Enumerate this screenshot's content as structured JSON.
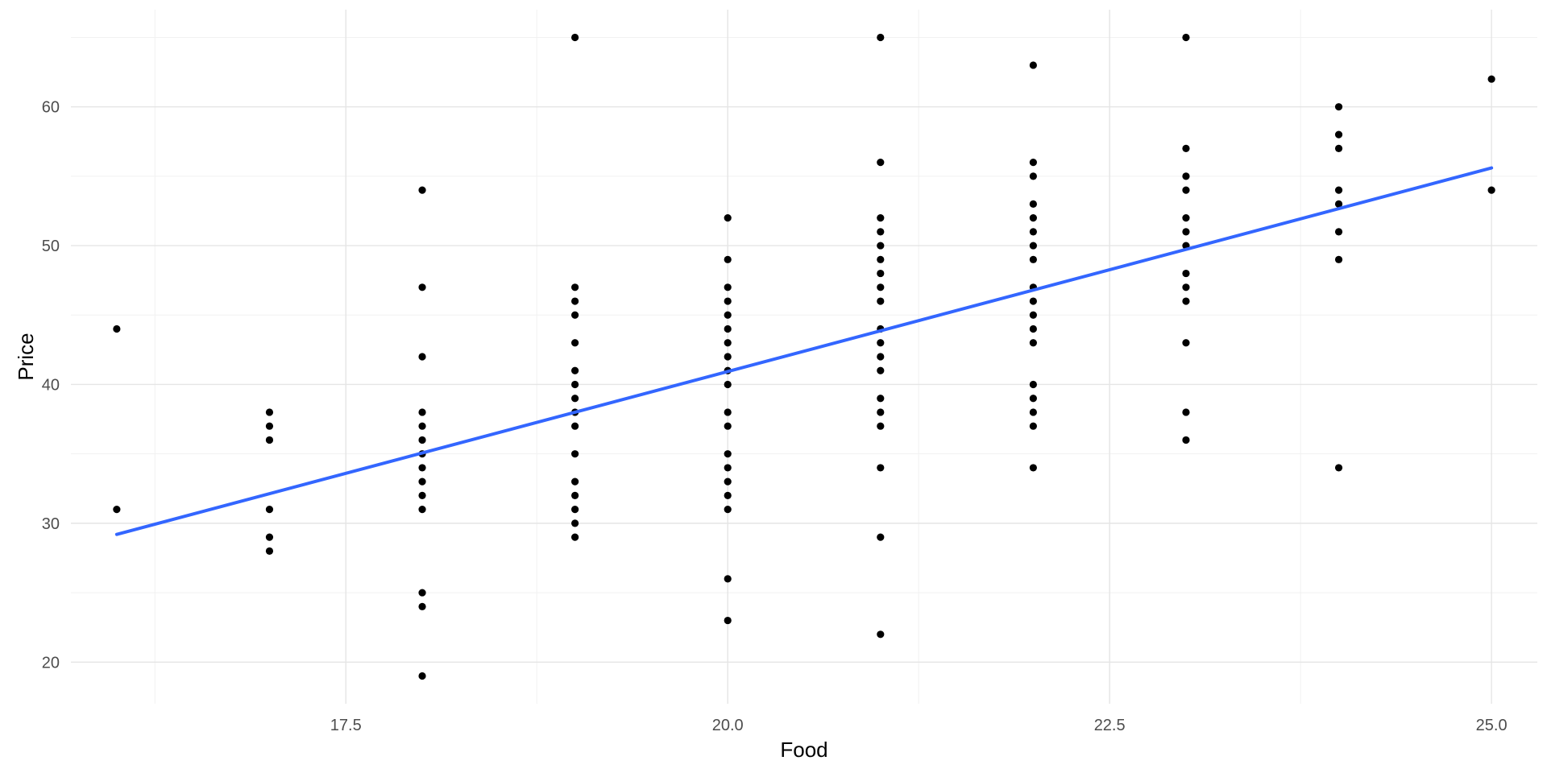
{
  "chart_data": {
    "type": "scatter",
    "title": "",
    "xlabel": "Food",
    "ylabel": "Price",
    "xlim": [
      15.7,
      25.3
    ],
    "ylim": [
      17,
      67
    ],
    "x_ticks": [
      17.5,
      20.0,
      22.5,
      25.0
    ],
    "x_tick_labels": [
      "17.5",
      "20.0",
      "22.5",
      "25.0"
    ],
    "y_ticks": [
      20,
      30,
      40,
      50,
      60
    ],
    "y_tick_labels": [
      "20",
      "30",
      "40",
      "50",
      "60"
    ],
    "grid": true,
    "legend": "none",
    "colors": {
      "points": "#000000",
      "fit_line": "#3366FF",
      "grid_major": "#e5e5e5",
      "grid_minor": "#f1f1f1"
    },
    "points": [
      {
        "x": 16,
        "y": 44
      },
      {
        "x": 16,
        "y": 31
      },
      {
        "x": 17,
        "y": 38
      },
      {
        "x": 17,
        "y": 37
      },
      {
        "x": 17,
        "y": 36
      },
      {
        "x": 17,
        "y": 31
      },
      {
        "x": 17,
        "y": 29
      },
      {
        "x": 17,
        "y": 28
      },
      {
        "x": 18,
        "y": 54
      },
      {
        "x": 18,
        "y": 47
      },
      {
        "x": 18,
        "y": 42
      },
      {
        "x": 18,
        "y": 38
      },
      {
        "x": 18,
        "y": 37
      },
      {
        "x": 18,
        "y": 36
      },
      {
        "x": 18,
        "y": 35
      },
      {
        "x": 18,
        "y": 34
      },
      {
        "x": 18,
        "y": 33
      },
      {
        "x": 18,
        "y": 32
      },
      {
        "x": 18,
        "y": 31
      },
      {
        "x": 18,
        "y": 25
      },
      {
        "x": 18,
        "y": 24
      },
      {
        "x": 18,
        "y": 19
      },
      {
        "x": 19,
        "y": 65
      },
      {
        "x": 19,
        "y": 47
      },
      {
        "x": 19,
        "y": 46
      },
      {
        "x": 19,
        "y": 45
      },
      {
        "x": 19,
        "y": 43
      },
      {
        "x": 19,
        "y": 41
      },
      {
        "x": 19,
        "y": 40
      },
      {
        "x": 19,
        "y": 39
      },
      {
        "x": 19,
        "y": 38
      },
      {
        "x": 19,
        "y": 37
      },
      {
        "x": 19,
        "y": 35
      },
      {
        "x": 19,
        "y": 33
      },
      {
        "x": 19,
        "y": 32
      },
      {
        "x": 19,
        "y": 31
      },
      {
        "x": 19,
        "y": 30
      },
      {
        "x": 19,
        "y": 29
      },
      {
        "x": 20,
        "y": 52
      },
      {
        "x": 20,
        "y": 49
      },
      {
        "x": 20,
        "y": 47
      },
      {
        "x": 20,
        "y": 46
      },
      {
        "x": 20,
        "y": 45
      },
      {
        "x": 20,
        "y": 44
      },
      {
        "x": 20,
        "y": 43
      },
      {
        "x": 20,
        "y": 42
      },
      {
        "x": 20,
        "y": 41
      },
      {
        "x": 20,
        "y": 40
      },
      {
        "x": 20,
        "y": 38
      },
      {
        "x": 20,
        "y": 37
      },
      {
        "x": 20,
        "y": 35
      },
      {
        "x": 20,
        "y": 34
      },
      {
        "x": 20,
        "y": 33
      },
      {
        "x": 20,
        "y": 32
      },
      {
        "x": 20,
        "y": 31
      },
      {
        "x": 20,
        "y": 26
      },
      {
        "x": 20,
        "y": 23
      },
      {
        "x": 21,
        "y": 65
      },
      {
        "x": 21,
        "y": 56
      },
      {
        "x": 21,
        "y": 52
      },
      {
        "x": 21,
        "y": 51
      },
      {
        "x": 21,
        "y": 50
      },
      {
        "x": 21,
        "y": 49
      },
      {
        "x": 21,
        "y": 48
      },
      {
        "x": 21,
        "y": 47
      },
      {
        "x": 21,
        "y": 46
      },
      {
        "x": 21,
        "y": 44
      },
      {
        "x": 21,
        "y": 43
      },
      {
        "x": 21,
        "y": 42
      },
      {
        "x": 21,
        "y": 41
      },
      {
        "x": 21,
        "y": 39
      },
      {
        "x": 21,
        "y": 38
      },
      {
        "x": 21,
        "y": 37
      },
      {
        "x": 21,
        "y": 34
      },
      {
        "x": 21,
        "y": 29
      },
      {
        "x": 21,
        "y": 22
      },
      {
        "x": 22,
        "y": 63
      },
      {
        "x": 22,
        "y": 56
      },
      {
        "x": 22,
        "y": 55
      },
      {
        "x": 22,
        "y": 53
      },
      {
        "x": 22,
        "y": 52
      },
      {
        "x": 22,
        "y": 51
      },
      {
        "x": 22,
        "y": 50
      },
      {
        "x": 22,
        "y": 49
      },
      {
        "x": 22,
        "y": 47
      },
      {
        "x": 22,
        "y": 46
      },
      {
        "x": 22,
        "y": 45
      },
      {
        "x": 22,
        "y": 44
      },
      {
        "x": 22,
        "y": 43
      },
      {
        "x": 22,
        "y": 40
      },
      {
        "x": 22,
        "y": 39
      },
      {
        "x": 22,
        "y": 38
      },
      {
        "x": 22,
        "y": 37
      },
      {
        "x": 22,
        "y": 34
      },
      {
        "x": 23,
        "y": 65
      },
      {
        "x": 23,
        "y": 57
      },
      {
        "x": 23,
        "y": 55
      },
      {
        "x": 23,
        "y": 54
      },
      {
        "x": 23,
        "y": 52
      },
      {
        "x": 23,
        "y": 51
      },
      {
        "x": 23,
        "y": 50
      },
      {
        "x": 23,
        "y": 48
      },
      {
        "x": 23,
        "y": 47
      },
      {
        "x": 23,
        "y": 46
      },
      {
        "x": 23,
        "y": 43
      },
      {
        "x": 23,
        "y": 38
      },
      {
        "x": 23,
        "y": 36
      },
      {
        "x": 24,
        "y": 60
      },
      {
        "x": 24,
        "y": 58
      },
      {
        "x": 24,
        "y": 57
      },
      {
        "x": 24,
        "y": 54
      },
      {
        "x": 24,
        "y": 53
      },
      {
        "x": 24,
        "y": 51
      },
      {
        "x": 24,
        "y": 49
      },
      {
        "x": 24,
        "y": 34
      },
      {
        "x": 25,
        "y": 62
      },
      {
        "x": 25,
        "y": 54
      }
    ],
    "fit_line": {
      "x": [
        16,
        25
      ],
      "y": [
        29.2,
        55.6
      ]
    }
  }
}
